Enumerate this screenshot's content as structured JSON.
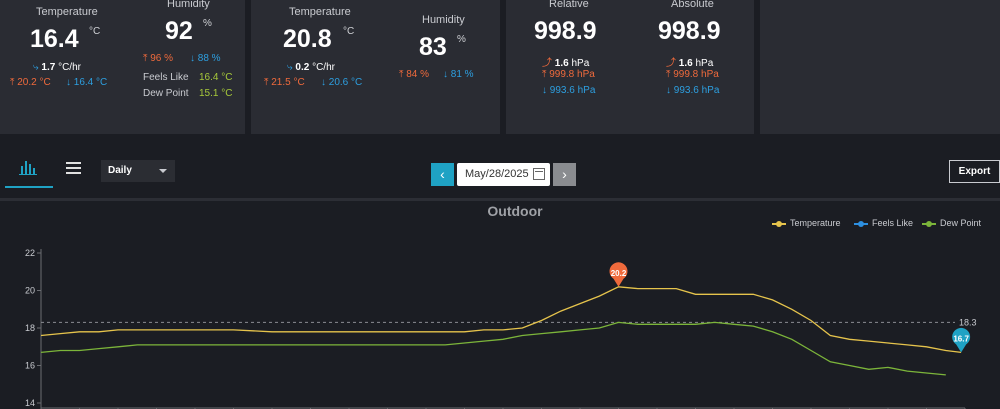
{
  "outdoor_card": {
    "temperature_label": "Temperature",
    "temperature_value": "16.4",
    "temperature_unit": "°C",
    "temp_rate": "1.7",
    "temp_rate_unit": "°C/hr",
    "temp_high": "20.2 °C",
    "temp_low": "16.4 °C",
    "humidity_label": "Humidity",
    "humidity_value": "92",
    "humidity_unit": "%",
    "humidity_high": "96 %",
    "humidity_low": "88 %",
    "feels_like_label": "Feels Like",
    "feels_like_value": "16.4 °C",
    "dew_point_label": "Dew Point",
    "dew_point_value": "15.1 °C"
  },
  "indoor_card": {
    "temperature_label": "Temperature",
    "temperature_value": "20.8",
    "temperature_unit": "°C",
    "temp_rate": "0.2",
    "temp_rate_unit": "°C/hr",
    "temp_high": "21.5 °C",
    "temp_low": "20.6 °C",
    "humidity_label": "Humidity",
    "humidity_value": "83",
    "humidity_unit": "%",
    "humidity_high": "84 %",
    "humidity_low": "81 %"
  },
  "pressure_card": {
    "relative_label": "Relative",
    "relative_value": "998.9",
    "relative_rate": "1.6",
    "relative_rate_unit": "hPa",
    "relative_high": "999.8 hPa",
    "relative_low": "993.6 hPa",
    "absolute_label": "Absolute",
    "absolute_value": "998.9",
    "absolute_rate": "1.6",
    "absolute_rate_unit": "hPa",
    "absolute_high": "999.8 hPa",
    "absolute_low": "993.6 hPa"
  },
  "toolbar": {
    "period_select": "Daily",
    "date_value": "May/28/2025",
    "prev_label": "‹",
    "next_label": "›",
    "export_label": "Export"
  },
  "colors": {
    "accent": "#1fa2c4",
    "high": "#ef6a3c",
    "low": "#2d9fe0",
    "temperature": "#e6c44c",
    "feels_like": "#2d8fe0",
    "dew_point": "#7cb53a"
  },
  "chart_data": {
    "type": "line",
    "title": "Outdoor",
    "legend_position": "top-right",
    "grid": false,
    "ylim": [
      14,
      22
    ],
    "yticks": [
      "14",
      "16",
      "18",
      "20",
      "22"
    ],
    "x_range": [
      0,
      24
    ],
    "series": [
      {
        "name": "Temperature",
        "color": "#e6c44c",
        "x": [
          0,
          0.5,
          1,
          1.5,
          2,
          2.5,
          3,
          4,
          5,
          6,
          7,
          8,
          9,
          10,
          10.5,
          11,
          11.5,
          12,
          12.5,
          13,
          13.5,
          14,
          14.5,
          15,
          15.5,
          16,
          16.5,
          17,
          17.5,
          18,
          18.5,
          19,
          19.5,
          20,
          20.5,
          21,
          21.5,
          22,
          22.5,
          23,
          23.5,
          23.9
        ],
        "values": [
          17.6,
          17.7,
          17.8,
          17.8,
          17.9,
          17.9,
          17.9,
          17.9,
          17.9,
          17.8,
          17.8,
          17.8,
          17.8,
          17.8,
          17.8,
          17.8,
          17.9,
          17.9,
          18.0,
          18.4,
          18.9,
          19.3,
          19.7,
          20.2,
          20.1,
          20.1,
          20.1,
          19.8,
          19.8,
          19.8,
          19.8,
          19.5,
          19.0,
          18.4,
          17.6,
          17.4,
          17.3,
          17.2,
          17.1,
          17.0,
          16.8,
          16.7
        ]
      },
      {
        "name": "Feels Like",
        "color": "#2d8fe0",
        "x": [],
        "values": []
      },
      {
        "name": "Dew Point",
        "color": "#7cb53a",
        "x": [
          0,
          0.5,
          1,
          1.5,
          2,
          2.5,
          3,
          4,
          5,
          6,
          7,
          8,
          9,
          10,
          10.5,
          11,
          11.5,
          12,
          12.5,
          13,
          13.5,
          14,
          14.5,
          15,
          15.5,
          16,
          16.5,
          17,
          17.5,
          18,
          18.5,
          19,
          19.5,
          20,
          20.5,
          21,
          21.5,
          22,
          22.5,
          23,
          23.5
        ],
        "values": [
          16.7,
          16.8,
          16.8,
          16.9,
          17.0,
          17.1,
          17.1,
          17.1,
          17.1,
          17.1,
          17.1,
          17.1,
          17.1,
          17.1,
          17.1,
          17.2,
          17.3,
          17.4,
          17.6,
          17.7,
          17.8,
          17.9,
          18.0,
          18.3,
          18.2,
          18.2,
          18.2,
          18.2,
          18.3,
          18.2,
          18.1,
          17.8,
          17.4,
          16.8,
          16.2,
          16.0,
          15.8,
          15.9,
          15.7,
          15.6,
          15.5
        ]
      }
    ],
    "reference_line": {
      "value": 18.3,
      "label": "18.3"
    },
    "markers": [
      {
        "label": "20.2",
        "x": 15,
        "value": 20.2,
        "color": "#ef6a3c"
      },
      {
        "label": "16.7",
        "x": 23.9,
        "value": 16.7,
        "color": "#1fa2c4"
      }
    ]
  }
}
